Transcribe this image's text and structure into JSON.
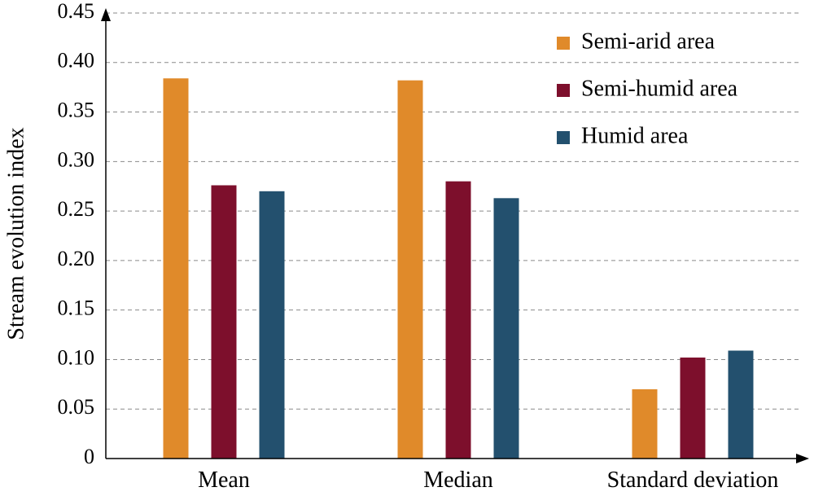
{
  "chart_data": {
    "type": "bar",
    "title": "",
    "xlabel": "",
    "ylabel": "Stream evolution index",
    "ylim": [
      0,
      0.45
    ],
    "yticks": [
      "0",
      "0.05",
      "0.10",
      "0.15",
      "0.20",
      "0.25",
      "0.30",
      "0.35",
      "0.40",
      "0.45"
    ],
    "categories": [
      "Mean",
      "Median",
      "Standard deviation"
    ],
    "series": [
      {
        "name": "Semi-arid area",
        "color": "#e08a2a",
        "values": [
          0.384,
          0.382,
          0.07
        ]
      },
      {
        "name": "Semi-humid area",
        "color": "#7d0f2c",
        "values": [
          0.276,
          0.28,
          0.102
        ]
      },
      {
        "name": "Humid area",
        "color": "#23506e",
        "values": [
          0.27,
          0.263,
          0.109
        ]
      }
    ],
    "grid": true,
    "legend": "top-right"
  }
}
